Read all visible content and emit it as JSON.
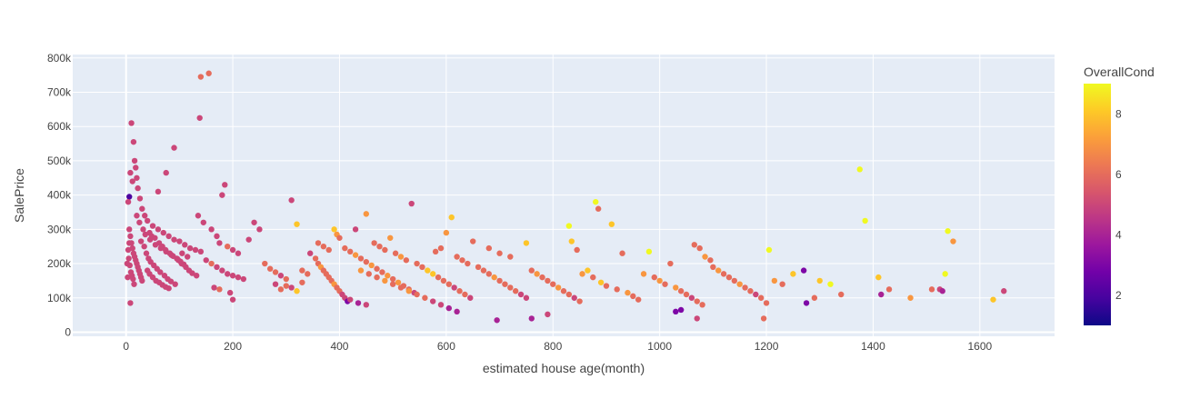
{
  "chart_data": {
    "type": "scatter",
    "title": "",
    "xlabel": "estimated house age(month)",
    "ylabel": "SalePrice",
    "xlim": [
      -100,
      1740
    ],
    "ylim": [
      -12000,
      810000
    ],
    "x_ticks": [
      0,
      200,
      400,
      600,
      800,
      1000,
      1200,
      1400,
      1600
    ],
    "x_tick_labels": [
      "0",
      "200",
      "400",
      "600",
      "800",
      "1000",
      "1200",
      "1400",
      "1600"
    ],
    "y_ticks": [
      0,
      100000,
      200000,
      300000,
      400000,
      500000,
      600000,
      700000,
      800000
    ],
    "y_tick_labels": [
      "0",
      "100k",
      "200k",
      "300k",
      "400k",
      "500k",
      "600k",
      "700k",
      "800k"
    ],
    "grid": true,
    "colorbar": {
      "title": "OverallCond",
      "min": 1,
      "max": 9,
      "ticks": [
        2,
        4,
        6,
        8
      ],
      "tick_labels": [
        "2",
        "4",
        "6",
        "8"
      ],
      "colors": [
        "#0d0887",
        "#46039f",
        "#7201a8",
        "#9c179e",
        "#bd3786",
        "#d8576b",
        "#ed7953",
        "#fb9f3a",
        "#fdca26",
        "#f0f921"
      ]
    },
    "points": [
      [
        6,
        395000,
        2
      ],
      [
        10,
        610000,
        5
      ],
      [
        14,
        555000,
        5
      ],
      [
        16,
        500000,
        5
      ],
      [
        18,
        480000,
        5
      ],
      [
        20,
        450000,
        5
      ],
      [
        12,
        440000,
        5
      ],
      [
        8,
        465000,
        5
      ],
      [
        4,
        380000,
        5
      ],
      [
        22,
        420000,
        5
      ],
      [
        26,
        390000,
        5
      ],
      [
        30,
        360000,
        5
      ],
      [
        35,
        340000,
        5
      ],
      [
        40,
        325000,
        5
      ],
      [
        50,
        310000,
        5
      ],
      [
        60,
        300000,
        5
      ],
      [
        70,
        290000,
        5
      ],
      [
        80,
        280000,
        5
      ],
      [
        90,
        270000,
        5
      ],
      [
        100,
        265000,
        5
      ],
      [
        110,
        255000,
        5
      ],
      [
        120,
        245000,
        5
      ],
      [
        130,
        240000,
        5
      ],
      [
        140,
        235000,
        5
      ],
      [
        6,
        300000,
        5
      ],
      [
        8,
        280000,
        5
      ],
      [
        10,
        260000,
        5
      ],
      [
        12,
        245000,
        5
      ],
      [
        14,
        230000,
        5
      ],
      [
        16,
        220000,
        5
      ],
      [
        18,
        210000,
        5
      ],
      [
        20,
        200000,
        5
      ],
      [
        22,
        190000,
        5
      ],
      [
        24,
        180000,
        5
      ],
      [
        26,
        170000,
        5
      ],
      [
        28,
        160000,
        5
      ],
      [
        30,
        150000,
        5
      ],
      [
        5,
        215000,
        5
      ],
      [
        7,
        195000,
        5
      ],
      [
        9,
        175000,
        5
      ],
      [
        11,
        165000,
        5
      ],
      [
        13,
        155000,
        5
      ],
      [
        15,
        140000,
        5
      ],
      [
        3,
        160000,
        5
      ],
      [
        2,
        200000,
        5
      ],
      [
        4,
        240000,
        5
      ],
      [
        6,
        260000,
        5
      ],
      [
        8,
        85000,
        5
      ],
      [
        38,
        230000,
        5
      ],
      [
        42,
        215000,
        5
      ],
      [
        46,
        205000,
        5
      ],
      [
        52,
        195000,
        5
      ],
      [
        58,
        185000,
        5
      ],
      [
        64,
        175000,
        5
      ],
      [
        72,
        165000,
        5
      ],
      [
        78,
        155000,
        5
      ],
      [
        84,
        148000,
        5
      ],
      [
        92,
        140000,
        5
      ],
      [
        98,
        210000,
        5
      ],
      [
        104,
        200000,
        5
      ],
      [
        112,
        190000,
        5
      ],
      [
        118,
        180000,
        5
      ],
      [
        124,
        172000,
        5
      ],
      [
        132,
        165000,
        5
      ],
      [
        45,
        270000,
        5
      ],
      [
        55,
        255000,
        5
      ],
      [
        65,
        245000,
        5
      ],
      [
        75,
        235000,
        5
      ],
      [
        85,
        225000,
        5
      ],
      [
        95,
        215000,
        5
      ],
      [
        105,
        230000,
        5
      ],
      [
        115,
        220000,
        5
      ],
      [
        60,
        410000,
        5
      ],
      [
        75,
        465000,
        5
      ],
      [
        90,
        538000,
        5
      ],
      [
        140,
        745000,
        6
      ],
      [
        155,
        755000,
        6
      ],
      [
        138,
        625000,
        5
      ],
      [
        180,
        400000,
        5
      ],
      [
        185,
        430000,
        5
      ],
      [
        135,
        340000,
        5
      ],
      [
        145,
        320000,
        5
      ],
      [
        160,
        300000,
        5
      ],
      [
        170,
        280000,
        5
      ],
      [
        175,
        260000,
        5
      ],
      [
        190,
        250000,
        6
      ],
      [
        200,
        240000,
        5
      ],
      [
        210,
        230000,
        5
      ],
      [
        150,
        210000,
        5
      ],
      [
        160,
        200000,
        6
      ],
      [
        170,
        190000,
        5
      ],
      [
        180,
        180000,
        5
      ],
      [
        190,
        170000,
        5
      ],
      [
        200,
        165000,
        5
      ],
      [
        210,
        160000,
        5
      ],
      [
        220,
        155000,
        5
      ],
      [
        165,
        130000,
        5
      ],
      [
        175,
        125000,
        6
      ],
      [
        195,
        115000,
        5
      ],
      [
        200,
        95000,
        5
      ],
      [
        230,
        270000,
        5
      ],
      [
        240,
        320000,
        5
      ],
      [
        250,
        300000,
        5
      ],
      [
        260,
        200000,
        6
      ],
      [
        270,
        185000,
        6
      ],
      [
        280,
        175000,
        6
      ],
      [
        290,
        165000,
        5
      ],
      [
        300,
        155000,
        6
      ],
      [
        310,
        385000,
        5
      ],
      [
        320,
        315000,
        8
      ],
      [
        330,
        180000,
        6
      ],
      [
        340,
        170000,
        6
      ],
      [
        280,
        140000,
        5
      ],
      [
        290,
        125000,
        6
      ],
      [
        300,
        135000,
        6
      ],
      [
        310,
        130000,
        5
      ],
      [
        320,
        120000,
        8
      ],
      [
        330,
        145000,
        6
      ],
      [
        345,
        230000,
        5
      ],
      [
        355,
        215000,
        6
      ],
      [
        360,
        200000,
        6
      ],
      [
        365,
        190000,
        7
      ],
      [
        370,
        180000,
        6
      ],
      [
        375,
        170000,
        6
      ],
      [
        380,
        160000,
        6
      ],
      [
        385,
        150000,
        6
      ],
      [
        390,
        140000,
        7
      ],
      [
        395,
        130000,
        6
      ],
      [
        400,
        120000,
        6
      ],
      [
        405,
        110000,
        5
      ],
      [
        410,
        100000,
        5
      ],
      [
        415,
        90000,
        3
      ],
      [
        360,
        260000,
        6
      ],
      [
        370,
        250000,
        6
      ],
      [
        380,
        240000,
        6
      ],
      [
        390,
        300000,
        8
      ],
      [
        395,
        285000,
        7
      ],
      [
        400,
        275000,
        6
      ],
      [
        410,
        245000,
        6
      ],
      [
        420,
        235000,
        6
      ],
      [
        430,
        225000,
        7
      ],
      [
        440,
        215000,
        6
      ],
      [
        450,
        205000,
        6
      ],
      [
        460,
        195000,
        7
      ],
      [
        470,
        185000,
        6
      ],
      [
        480,
        175000,
        6
      ],
      [
        490,
        165000,
        7
      ],
      [
        500,
        155000,
        6
      ],
      [
        510,
        145000,
        7
      ],
      [
        520,
        135000,
        6
      ],
      [
        530,
        125000,
        6
      ],
      [
        540,
        115000,
        5
      ],
      [
        430,
        300000,
        5
      ],
      [
        450,
        345000,
        7
      ],
      [
        465,
        260000,
        6
      ],
      [
        475,
        250000,
        6
      ],
      [
        485,
        240000,
        6
      ],
      [
        495,
        275000,
        7
      ],
      [
        505,
        230000,
        6
      ],
      [
        515,
        220000,
        7
      ],
      [
        525,
        210000,
        6
      ],
      [
        535,
        375000,
        5
      ],
      [
        545,
        200000,
        6
      ],
      [
        555,
        190000,
        6
      ],
      [
        565,
        180000,
        8
      ],
      [
        575,
        170000,
        8
      ],
      [
        585,
        160000,
        6
      ],
      [
        595,
        150000,
        6
      ],
      [
        605,
        140000,
        6
      ],
      [
        615,
        130000,
        5
      ],
      [
        625,
        120000,
        6
      ],
      [
        635,
        110000,
        6
      ],
      [
        645,
        100000,
        5
      ],
      [
        580,
        235000,
        6
      ],
      [
        590,
        245000,
        6
      ],
      [
        600,
        290000,
        7
      ],
      [
        610,
        335000,
        8
      ],
      [
        620,
        220000,
        6
      ],
      [
        630,
        210000,
        6
      ],
      [
        640,
        200000,
        6
      ],
      [
        650,
        265000,
        6
      ],
      [
        660,
        190000,
        6
      ],
      [
        670,
        180000,
        6
      ],
      [
        680,
        170000,
        6
      ],
      [
        690,
        160000,
        7
      ],
      [
        700,
        150000,
        6
      ],
      [
        710,
        140000,
        6
      ],
      [
        720,
        130000,
        6
      ],
      [
        730,
        120000,
        6
      ],
      [
        740,
        110000,
        5
      ],
      [
        750,
        100000,
        5
      ],
      [
        695,
        35000,
        4
      ],
      [
        680,
        245000,
        6
      ],
      [
        700,
        230000,
        6
      ],
      [
        720,
        220000,
        6
      ],
      [
        750,
        260000,
        8
      ],
      [
        760,
        180000,
        6
      ],
      [
        770,
        170000,
        7
      ],
      [
        780,
        160000,
        6
      ],
      [
        790,
        150000,
        6
      ],
      [
        800,
        140000,
        6
      ],
      [
        810,
        130000,
        7
      ],
      [
        820,
        120000,
        6
      ],
      [
        830,
        110000,
        6
      ],
      [
        840,
        100000,
        5
      ],
      [
        850,
        90000,
        6
      ],
      [
        760,
        40000,
        4
      ],
      [
        790,
        52000,
        5
      ],
      [
        830,
        310000,
        9
      ],
      [
        835,
        265000,
        8
      ],
      [
        845,
        240000,
        6
      ],
      [
        855,
        170000,
        7
      ],
      [
        865,
        180000,
        8
      ],
      [
        875,
        160000,
        6
      ],
      [
        880,
        380000,
        9
      ],
      [
        885,
        360000,
        6
      ],
      [
        890,
        145000,
        8
      ],
      [
        900,
        135000,
        6
      ],
      [
        910,
        315000,
        8
      ],
      [
        920,
        125000,
        6
      ],
      [
        930,
        230000,
        6
      ],
      [
        940,
        115000,
        7
      ],
      [
        950,
        105000,
        6
      ],
      [
        960,
        95000,
        6
      ],
      [
        970,
        170000,
        7
      ],
      [
        980,
        235000,
        9
      ],
      [
        990,
        160000,
        6
      ],
      [
        1000,
        150000,
        7
      ],
      [
        1010,
        140000,
        6
      ],
      [
        1020,
        200000,
        6
      ],
      [
        1030,
        130000,
        7
      ],
      [
        1040,
        120000,
        6
      ],
      [
        1050,
        110000,
        6
      ],
      [
        1060,
        100000,
        5
      ],
      [
        1070,
        90000,
        6
      ],
      [
        1080,
        80000,
        6
      ],
      [
        1030,
        60000,
        3
      ],
      [
        1040,
        65000,
        3
      ],
      [
        1070,
        40000,
        5
      ],
      [
        1065,
        255000,
        6
      ],
      [
        1075,
        245000,
        6
      ],
      [
        1085,
        220000,
        7
      ],
      [
        1095,
        210000,
        6
      ],
      [
        1100,
        190000,
        6
      ],
      [
        1110,
        180000,
        7
      ],
      [
        1120,
        170000,
        6
      ],
      [
        1130,
        160000,
        6
      ],
      [
        1140,
        150000,
        6
      ],
      [
        1150,
        140000,
        7
      ],
      [
        1160,
        130000,
        6
      ],
      [
        1170,
        120000,
        6
      ],
      [
        1180,
        110000,
        5
      ],
      [
        1190,
        100000,
        6
      ],
      [
        1200,
        85000,
        6
      ],
      [
        1195,
        40000,
        6
      ],
      [
        1205,
        240000,
        9
      ],
      [
        1215,
        150000,
        7
      ],
      [
        1230,
        140000,
        6
      ],
      [
        1250,
        170000,
        8
      ],
      [
        1270,
        180000,
        3
      ],
      [
        1275,
        85000,
        3
      ],
      [
        1290,
        100000,
        6
      ],
      [
        1300,
        150000,
        8
      ],
      [
        1320,
        140000,
        9
      ],
      [
        1340,
        110000,
        6
      ],
      [
        1375,
        475000,
        9
      ],
      [
        1385,
        325000,
        9
      ],
      [
        1410,
        160000,
        8
      ],
      [
        1415,
        110000,
        4
      ],
      [
        1430,
        125000,
        6
      ],
      [
        1470,
        100000,
        7
      ],
      [
        1510,
        125000,
        6
      ],
      [
        1525,
        125000,
        5
      ],
      [
        1530,
        120000,
        4
      ],
      [
        1540,
        295000,
        9
      ],
      [
        1535,
        170000,
        9
      ],
      [
        1550,
        265000,
        7
      ],
      [
        1625,
        95000,
        8
      ],
      [
        1645,
        120000,
        5
      ],
      [
        20,
        340000,
        5
      ],
      [
        25,
        320000,
        5
      ],
      [
        32,
        300000,
        5
      ],
      [
        36,
        285000,
        5
      ],
      [
        28,
        265000,
        5
      ],
      [
        34,
        250000,
        5
      ],
      [
        44,
        290000,
        5
      ],
      [
        48,
        280000,
        5
      ],
      [
        54,
        275000,
        5
      ],
      [
        62,
        260000,
        5
      ],
      [
        68,
        250000,
        5
      ],
      [
        74,
        240000,
        5
      ],
      [
        82,
        230000,
        5
      ],
      [
        88,
        222000,
        5
      ],
      [
        96,
        214000,
        5
      ],
      [
        102,
        206000,
        5
      ],
      [
        108,
        198000,
        5
      ],
      [
        40,
        180000,
        5
      ],
      [
        44,
        170000,
        5
      ],
      [
        50,
        160000,
        5
      ],
      [
        56,
        150000,
        5
      ],
      [
        62,
        145000,
        5
      ],
      [
        68,
        138000,
        5
      ],
      [
        74,
        132000,
        5
      ],
      [
        80,
        128000,
        5
      ],
      [
        440,
        180000,
        7
      ],
      [
        455,
        170000,
        6
      ],
      [
        470,
        160000,
        6
      ],
      [
        485,
        150000,
        7
      ],
      [
        500,
        140000,
        6
      ],
      [
        515,
        130000,
        6
      ],
      [
        530,
        120000,
        7
      ],
      [
        545,
        110000,
        6
      ],
      [
        560,
        100000,
        6
      ],
      [
        575,
        90000,
        5
      ],
      [
        590,
        80000,
        5
      ],
      [
        605,
        70000,
        4
      ],
      [
        620,
        60000,
        4
      ],
      [
        420,
        95000,
        5
      ],
      [
        435,
        85000,
        4
      ],
      [
        450,
        80000,
        5
      ]
    ]
  }
}
